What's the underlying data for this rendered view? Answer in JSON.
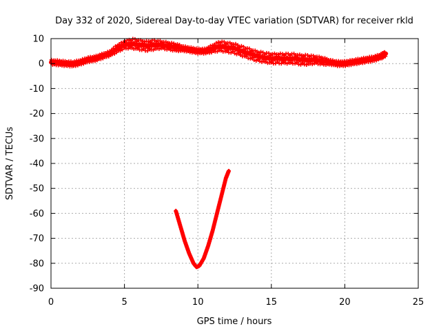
{
  "chart_data": {
    "type": "scatter",
    "title": "Day 332 of 2020, Sidereal Day-to-day VTEC variation (SDTVAR) for receiver rkld",
    "xlabel": "GPS time / hours",
    "ylabel": "SDTVAR / TECUs",
    "xlim": [
      0,
      25
    ],
    "ylim": [
      -90,
      10
    ],
    "xticks": [
      0,
      5,
      10,
      15,
      20,
      25
    ],
    "yticks": [
      10,
      0,
      -10,
      -20,
      -30,
      -40,
      -50,
      -60,
      -70,
      -80,
      -90
    ],
    "grid": true,
    "legend": "none",
    "series": [
      {
        "name": "SDTVAR main",
        "color": "#ff0000",
        "x": [
          0,
          0.5,
          1,
          1.5,
          2,
          2.5,
          3,
          3.5,
          4,
          4.5,
          5,
          5.5,
          6,
          6.5,
          7,
          7.5,
          8,
          8.5,
          9,
          9.5,
          10,
          10.5,
          11,
          11.5,
          12,
          12.5,
          13,
          13.5,
          14,
          14.5,
          15,
          15.5,
          16,
          16.5,
          17,
          17.5,
          18,
          18.5,
          19,
          19.5,
          20,
          20.5,
          21,
          21.5,
          22,
          22.5,
          22.8
        ],
        "y": [
          0.5,
          0.3,
          0,
          -0.2,
          0.5,
          1.5,
          2,
          3,
          4,
          6,
          7.5,
          8,
          7.5,
          7,
          7.5,
          7.5,
          7,
          6.5,
          6,
          5.5,
          5,
          5,
          6,
          7,
          6.5,
          6,
          5,
          4,
          3,
          2.5,
          2,
          2,
          2,
          2,
          1.5,
          1.5,
          1.5,
          1,
          0.5,
          0,
          0,
          0.5,
          1,
          1.5,
          2,
          3,
          4
        ],
        "spread": [
          1,
          1,
          1,
          1,
          1,
          1,
          1,
          1,
          1,
          1.5,
          1.5,
          2,
          2,
          2,
          2,
          1.5,
          1.5,
          1.5,
          1,
          1,
          1,
          1,
          1.5,
          2,
          2,
          2,
          2,
          2,
          2,
          2,
          2,
          2,
          2,
          2,
          2,
          2,
          1.5,
          1.5,
          1,
          1,
          1,
          1,
          1,
          1,
          1,
          1,
          1
        ]
      },
      {
        "name": "SDTVAR dip",
        "color": "#ff0000",
        "x": [
          8.5,
          8.8,
          9.1,
          9.4,
          9.7,
          9.9,
          10.1,
          10.4,
          10.7,
          11.0,
          11.3,
          11.6,
          11.9,
          12.1
        ],
        "y": [
          -59,
          -65,
          -71,
          -76,
          -80,
          -81.5,
          -81,
          -78,
          -73,
          -67,
          -60,
          -53,
          -46,
          -43
        ]
      }
    ]
  }
}
